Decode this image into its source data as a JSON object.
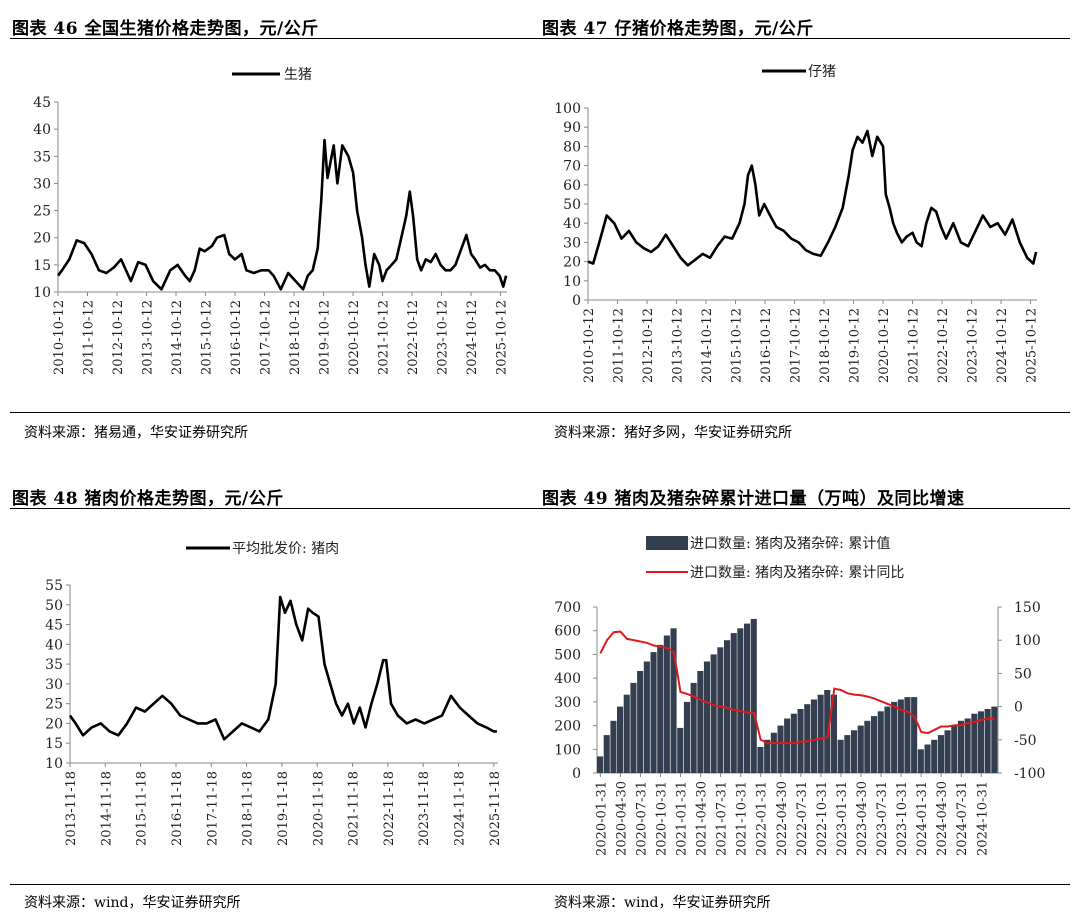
{
  "charts": [
    {
      "title": "图表 46 全国生猪价格走势图，元/公斤",
      "source": "资料来源：猪易通，华安证券研究所",
      "legend": "生猪",
      "y_ticks": [
        "45",
        "40",
        "35",
        "30",
        "25",
        "20",
        "15",
        "10"
      ],
      "x_ticks": [
        "2010-10-12",
        "2011-10-12",
        "2012-10-12",
        "2013-10-12",
        "2014-10-12",
        "2015-10-12",
        "2016-10-12",
        "2017-10-12",
        "2018-10-12",
        "2019-10-12",
        "2020-10-12",
        "2021-10-12",
        "2022-10-12",
        "2023-10-12",
        "2024-10-12",
        "2025-10-12"
      ]
    },
    {
      "title": "图表 47 仔猪价格走势图，元/公斤",
      "source": "资料来源：猪好多网，华安证券研究所",
      "legend": "仔猪",
      "y_ticks": [
        "100",
        "90",
        "80",
        "70",
        "60",
        "50",
        "40",
        "30",
        "20",
        "10",
        "0"
      ],
      "x_ticks": [
        "2010-10-12",
        "2011-10-12",
        "2012-10-12",
        "2013-10-12",
        "2014-10-12",
        "2015-10-12",
        "2016-10-12",
        "2017-10-12",
        "2018-10-12",
        "2019-10-12",
        "2020-10-12",
        "2021-10-12",
        "2022-10-12",
        "2023-10-12",
        "2024-10-12",
        "2025-10-12"
      ]
    },
    {
      "title": "图表 48 猪肉价格走势图，元/公斤",
      "source": "资料来源：wind，华安证券研究所",
      "legend": "平均批发价: 猪肉",
      "y_ticks": [
        "55",
        "50",
        "45",
        "40",
        "35",
        "30",
        "25",
        "20",
        "15",
        "10"
      ],
      "x_ticks": [
        "2013-11-18",
        "2014-11-18",
        "2015-11-18",
        "2016-11-18",
        "2017-11-18",
        "2018-11-18",
        "2019-11-18",
        "2020-11-18",
        "2021-11-18",
        "2022-11-18",
        "2023-11-18",
        "2024-11-18",
        "2025-11-18"
      ]
    },
    {
      "title": "图表 49 猪肉及猪杂碎累计进口量（万吨）及同比增速",
      "source": "资料来源：wind，华安证券研究所",
      "legend_bar": "进口数量: 猪肉及猪杂碎: 累计值",
      "legend_line": "进口数量: 猪肉及猪杂碎: 累计同比",
      "y_ticks_left": [
        "700",
        "600",
        "500",
        "400",
        "300",
        "200",
        "100",
        "0"
      ],
      "y_ticks_right": [
        "150",
        "100",
        "50",
        "0",
        "-50",
        "-100"
      ],
      "x_ticks": [
        "2020-01-31",
        "2020-04-30",
        "2020-07-31",
        "2020-10-31",
        "2021-01-31",
        "2021-04-30",
        "2021-07-31",
        "2021-10-31",
        "2022-01-31",
        "2022-04-30",
        "2022-07-31",
        "2022-10-31",
        "2023-01-31",
        "2023-04-30",
        "2023-07-31",
        "2023-10-31",
        "2024-01-31",
        "2024-04-30",
        "2024-07-31",
        "2024-10-31"
      ]
    }
  ],
  "chart_data": [
    {
      "type": "line",
      "title": "图表 46 全国生猪价格走势图，元/公斤",
      "ylim": [
        10,
        45
      ],
      "xlim": [
        "2010-10-12",
        "2025-12-31"
      ],
      "series": [
        {
          "name": "生猪",
          "color": "#000000",
          "x": [
            "2010-10-12",
            "2010-12-01",
            "2011-03-01",
            "2011-06-01",
            "2011-09-01",
            "2011-12-01",
            "2012-03-01",
            "2012-06-01",
            "2012-09-01",
            "2012-12-01",
            "2013-04-01",
            "2013-07-01",
            "2013-10-01",
            "2014-01-01",
            "2014-04-15",
            "2014-08-01",
            "2014-11-01",
            "2015-02-01",
            "2015-04-01",
            "2015-06-01",
            "2015-08-01",
            "2015-10-01",
            "2016-01-01",
            "2016-03-01",
            "2016-06-01",
            "2016-08-01",
            "2016-10-12",
            "2017-01-01",
            "2017-03-01",
            "2017-06-01",
            "2017-09-01",
            "2017-12-01",
            "2018-02-01",
            "2018-05-01",
            "2018-08-01",
            "2018-11-01",
            "2019-02-01",
            "2019-04-01",
            "2019-06-01",
            "2019-08-01",
            "2019-09-15",
            "2019-10-25",
            "2019-12-01",
            "2020-02-15",
            "2020-04-01",
            "2020-06-01",
            "2020-08-15",
            "2020-10-12",
            "2020-12-01",
            "2021-02-01",
            "2021-03-15",
            "2021-05-01",
            "2021-07-01",
            "2021-09-01",
            "2021-10-12",
            "2021-12-01",
            "2022-02-01",
            "2022-04-01",
            "2022-06-01",
            "2022-08-01",
            "2022-09-15",
            "2022-10-25",
            "2022-12-15",
            "2023-02-01",
            "2023-04-01",
            "2023-06-01",
            "2023-08-01",
            "2023-10-01",
            "2023-12-01",
            "2024-02-01",
            "2024-04-01",
            "2024-06-15",
            "2024-08-15",
            "2024-10-12",
            "2024-12-01",
            "2025-02-01",
            "2025-04-01",
            "2025-06-01",
            "2025-08-01",
            "2025-10-01",
            "2025-11-15",
            "2025-12-20"
          ],
          "y": [
            13,
            14,
            16,
            19.5,
            19,
            17,
            14,
            13.5,
            14.5,
            16,
            12,
            15.5,
            15,
            12,
            10.5,
            14,
            15,
            13,
            12,
            14,
            18,
            17.5,
            18.5,
            20,
            20.5,
            17,
            16,
            17,
            14,
            13.5,
            14,
            14,
            13,
            10.5,
            13.5,
            12,
            10.5,
            13,
            14,
            18,
            27,
            38,
            31,
            37,
            30,
            37,
            35,
            32,
            25,
            20,
            15,
            11,
            17,
            15,
            12,
            14,
            15,
            16,
            20,
            24,
            28.5,
            24,
            16,
            14,
            16,
            15.5,
            17,
            15,
            14,
            14,
            15,
            18,
            20.5,
            17,
            16,
            14.5,
            15,
            14,
            14,
            13,
            11,
            13
          ]
        }
      ]
    },
    {
      "type": "line",
      "title": "图表 47 仔猪价格走势图，元/公斤",
      "ylim": [
        0,
        100
      ],
      "xlim": [
        "2010-10-12",
        "2025-12-31"
      ],
      "series": [
        {
          "name": "仔猪",
          "color": "#000000",
          "x": [
            "2010-10-12",
            "2010-12-15",
            "2011-03-01",
            "2011-06-01",
            "2011-09-01",
            "2011-12-01",
            "2012-03-01",
            "2012-06-01",
            "2012-09-01",
            "2012-12-01",
            "2013-03-01",
            "2013-06-01",
            "2013-09-01",
            "2013-12-01",
            "2014-03-01",
            "2014-06-01",
            "2014-09-01",
            "2014-12-01",
            "2015-03-01",
            "2015-06-01",
            "2015-09-01",
            "2015-12-01",
            "2016-02-01",
            "2016-03-15",
            "2016-05-01",
            "2016-06-15",
            "2016-08-01",
            "2016-10-01",
            "2016-12-01",
            "2017-03-01",
            "2017-06-01",
            "2017-09-01",
            "2017-12-01",
            "2018-03-01",
            "2018-06-01",
            "2018-09-01",
            "2018-12-01",
            "2019-03-01",
            "2019-06-01",
            "2019-08-15",
            "2019-10-01",
            "2019-12-01",
            "2020-02-01",
            "2020-04-01",
            "2020-06-01",
            "2020-08-01",
            "2020-10-12",
            "2020-11-15",
            "2021-01-01",
            "2021-02-15",
            "2021-04-01",
            "2021-06-01",
            "2021-08-01",
            "2021-10-12",
            "2021-12-01",
            "2022-02-01",
            "2022-04-01",
            "2022-06-01",
            "2022-08-01",
            "2022-10-01",
            "2022-12-01",
            "2023-03-01",
            "2023-06-01",
            "2023-09-01",
            "2023-12-01",
            "2024-03-01",
            "2024-06-01",
            "2024-09-01",
            "2024-12-01",
            "2025-03-01",
            "2025-06-01",
            "2025-09-01",
            "2025-11-15",
            "2025-12-20"
          ],
          "y": [
            20,
            19,
            30,
            44,
            40,
            32,
            36,
            30,
            27,
            25,
            28,
            34,
            28,
            22,
            18,
            21,
            24,
            22,
            28,
            33,
            32,
            40,
            50,
            65,
            70,
            60,
            44,
            50,
            45,
            38,
            36,
            32,
            30,
            26,
            24,
            23,
            30,
            38,
            48,
            65,
            78,
            85,
            82,
            88,
            75,
            85,
            80,
            55,
            48,
            40,
            35,
            30,
            33,
            35,
            30,
            28,
            40,
            48,
            46,
            38,
            32,
            40,
            30,
            28,
            36,
            44,
            38,
            40,
            34,
            42,
            30,
            22,
            19,
            25
          ]
        }
      ]
    },
    {
      "type": "line",
      "title": "图表 48 猪肉价格走势图，元/公斤",
      "ylim": [
        10,
        55
      ],
      "xlim": [
        "2013-11-18",
        "2025-12-31"
      ],
      "series": [
        {
          "name": "平均批发价: 猪肉",
          "color": "#000000",
          "x": [
            "2013-11-18",
            "2014-01-15",
            "2014-04-01",
            "2014-07-01",
            "2014-10-01",
            "2015-01-01",
            "2015-04-01",
            "2015-07-01",
            "2015-10-01",
            "2016-01-01",
            "2016-04-01",
            "2016-07-01",
            "2016-10-01",
            "2017-01-01",
            "2017-04-01",
            "2017-07-01",
            "2017-10-01",
            "2018-01-01",
            "2018-04-01",
            "2018-07-01",
            "2018-10-01",
            "2019-01-01",
            "2019-04-01",
            "2019-07-01",
            "2019-09-15",
            "2019-11-01",
            "2019-12-20",
            "2020-02-15",
            "2020-04-15",
            "2020-06-15",
            "2020-08-15",
            "2020-10-01",
            "2020-12-01",
            "2021-02-01",
            "2021-04-01",
            "2021-06-01",
            "2021-08-01",
            "2021-10-01",
            "2021-12-01",
            "2022-02-01",
            "2022-04-01",
            "2022-06-01",
            "2022-08-01",
            "2022-10-01",
            "2022-11-01",
            "2022-12-20",
            "2023-03-01",
            "2023-06-01",
            "2023-09-01",
            "2023-12-01",
            "2024-03-01",
            "2024-06-01",
            "2024-09-01",
            "2024-12-01",
            "2025-03-01",
            "2025-06-01",
            "2025-09-01",
            "2025-11-15",
            "2025-12-20"
          ],
          "y": [
            22,
            20,
            17,
            19,
            20,
            18,
            17,
            20,
            24,
            23,
            25,
            27,
            25,
            22,
            21,
            20,
            20,
            21,
            16,
            18,
            20,
            19,
            18,
            21,
            30,
            52,
            48,
            51,
            45,
            41,
            49,
            48,
            47,
            35,
            30,
            25,
            22,
            25,
            20,
            24,
            19,
            25,
            30,
            36,
            36,
            25,
            22,
            20,
            21,
            20,
            21,
            22,
            27,
            24,
            22,
            20,
            19,
            18,
            18
          ]
        }
      ]
    },
    {
      "type": "bar+line",
      "title": "图表 49 猪肉及猪杂碎累计进口量（万吨）及同比增速",
      "categories": [
        "2020-01-31",
        "2020-02-29",
        "2020-03-31",
        "2020-04-30",
        "2020-05-31",
        "2020-06-30",
        "2020-07-31",
        "2020-08-31",
        "2020-09-30",
        "2020-10-31",
        "2020-11-30",
        "2020-12-31",
        "2021-01-31",
        "2021-02-28",
        "2021-03-31",
        "2021-04-30",
        "2021-05-31",
        "2021-06-30",
        "2021-07-31",
        "2021-08-31",
        "2021-09-30",
        "2021-10-31",
        "2021-11-30",
        "2021-12-31",
        "2022-01-31",
        "2022-02-28",
        "2022-03-31",
        "2022-04-30",
        "2022-05-31",
        "2022-06-30",
        "2022-07-31",
        "2022-08-31",
        "2022-09-30",
        "2022-10-31",
        "2022-11-30",
        "2022-12-31",
        "2023-01-31",
        "2023-02-28",
        "2023-03-31",
        "2023-04-30",
        "2023-05-31",
        "2023-06-30",
        "2023-07-31",
        "2023-08-31",
        "2023-09-30",
        "2023-10-31",
        "2023-11-30",
        "2023-12-31",
        "2024-01-31",
        "2024-02-29",
        "2024-03-31",
        "2024-04-30",
        "2024-05-31",
        "2024-06-30",
        "2024-07-31",
        "2024-08-31",
        "2024-09-30",
        "2024-10-31",
        "2024-11-30",
        "2024-12-31"
      ],
      "ylim_left": [
        0,
        700
      ],
      "ylim_right": [
        -100,
        150
      ],
      "series": [
        {
          "name": "进口数量: 猪肉及猪杂碎: 累计值",
          "axis": "left",
          "kind": "bar",
          "color": "#333f50",
          "values": [
            70,
            160,
            220,
            280,
            330,
            380,
            430,
            470,
            510,
            540,
            580,
            610,
            190,
            300,
            380,
            430,
            470,
            500,
            530,
            560,
            590,
            610,
            630,
            650,
            110,
            140,
            170,
            200,
            230,
            250,
            270,
            290,
            310,
            330,
            350,
            330,
            140,
            160,
            180,
            200,
            220,
            240,
            260,
            280,
            300,
            310,
            320,
            320,
            100,
            120,
            140,
            160,
            180,
            200,
            220,
            230,
            250,
            260,
            270,
            280
          ]
        },
        {
          "name": "进口数量: 猪肉及猪杂碎: 累计同比",
          "axis": "right",
          "kind": "line",
          "color": "#e0191b",
          "values": [
            80,
            100,
            112,
            113,
            102,
            100,
            98,
            96,
            92,
            90,
            88,
            82,
            22,
            19,
            15,
            10,
            6,
            2,
            0,
            -2,
            -5,
            -7,
            -9,
            -10,
            -50,
            -55,
            -55,
            -55,
            -55,
            -55,
            -53,
            -52,
            -50,
            -48,
            -46,
            27,
            25,
            20,
            18,
            17,
            15,
            12,
            8,
            4,
            0,
            -5,
            -8,
            -15,
            -38,
            -40,
            -35,
            -30,
            -30,
            -28,
            -28,
            -25,
            -23,
            -20,
            -18,
            -18
          ]
        }
      ]
    }
  ]
}
